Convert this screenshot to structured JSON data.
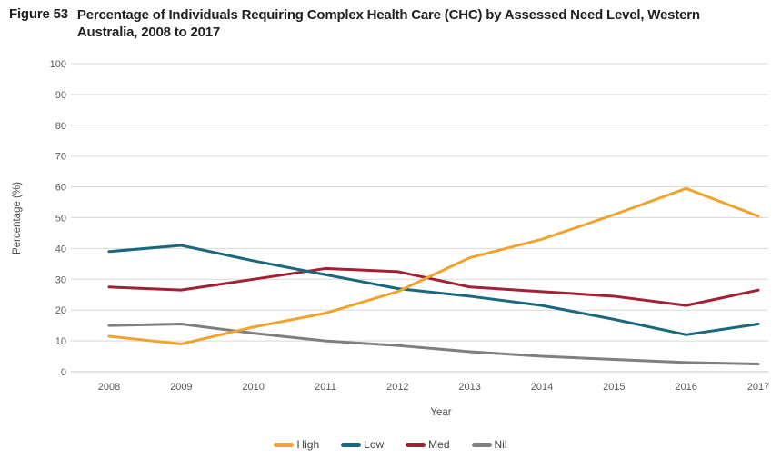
{
  "figure": {
    "label": "Figure 53",
    "title": "Percentage of Individuals Requiring Complex Health Care (CHC) by Assessed Need Level, Western Australia, 2008 to 2017"
  },
  "chart_data": {
    "type": "line",
    "x": [
      2008,
      2009,
      2010,
      2011,
      2012,
      2013,
      2014,
      2015,
      2016,
      2017
    ],
    "series": [
      {
        "name": "High",
        "color": "#F0A32F",
        "values": [
          11.5,
          9,
          14.5,
          19,
          26,
          37,
          43,
          51,
          59.5,
          50.5
        ]
      },
      {
        "name": "Low",
        "color": "#19687D",
        "values": [
          39,
          41,
          36,
          31.5,
          27,
          24.5,
          21.5,
          17,
          12,
          15.5
        ]
      },
      {
        "name": "Med",
        "color": "#A32035",
        "values": [
          27.5,
          26.5,
          30,
          33.5,
          32.5,
          27.5,
          26,
          24.5,
          21.5,
          26.5
        ]
      },
      {
        "name": "Nil",
        "color": "#7F7F7F",
        "values": [
          15,
          15.5,
          12.5,
          10,
          8.5,
          6.5,
          5,
          4,
          3,
          2.5
        ]
      }
    ],
    "xlabel": "Year",
    "ylabel": "Percentage (%)",
    "ylim": [
      0,
      100
    ],
    "ytick_step": 10,
    "grid": "horizontal",
    "legend_position": "bottom",
    "legend_order": [
      "High",
      "Low",
      "Med",
      "Nil"
    ]
  },
  "style": {
    "gridline_color": "#D9D9D9",
    "baseline_color": "#C6C6C6",
    "tick_label_color": "#595959",
    "axis_title_color": "#4D4D4D",
    "legend_text_color": "#404040",
    "title_color": "#231F20"
  }
}
